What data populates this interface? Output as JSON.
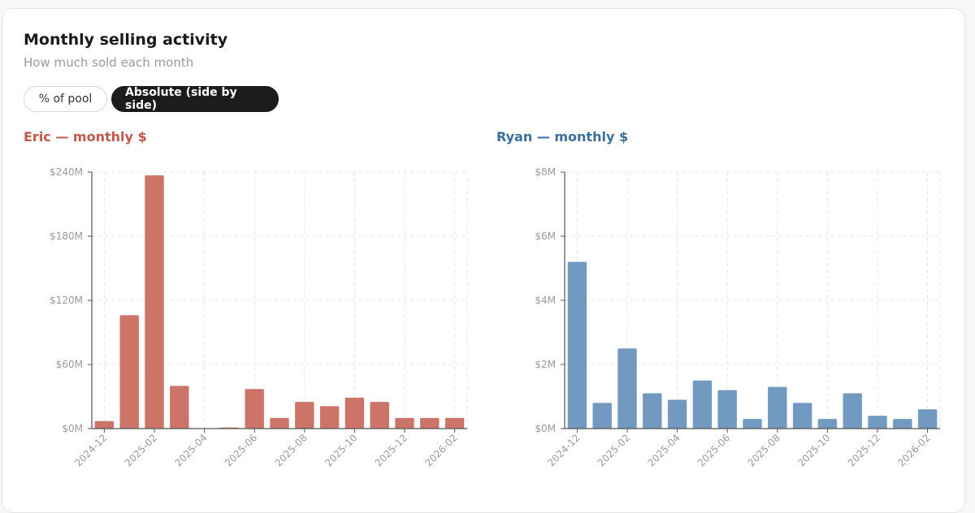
{
  "header": {
    "title": "Monthly selling activity",
    "subtitle": "How much sold each month"
  },
  "toggles": {
    "pct_label": "% of pool",
    "abs_label": "Absolute (side by side)",
    "active": "abs"
  },
  "colors": {
    "eric": "#c0594a",
    "eric_bar": "#cd7468",
    "ryan": "#3d6f9e",
    "ryan_bar": "#7299c0"
  },
  "chart_data": [
    {
      "type": "bar",
      "title": "Eric — monthly $",
      "categories": [
        "2024-12",
        "2025-01",
        "2025-02",
        "2025-03",
        "2025-04",
        "2025-05",
        "2025-06",
        "2025-07",
        "2025-08",
        "2025-09",
        "2025-10",
        "2025-11",
        "2025-12",
        "2026-01",
        "2026-02"
      ],
      "tick_labels": [
        "2024-12",
        "2025-02",
        "2025-04",
        "2025-06",
        "2025-08",
        "2025-10",
        "2025-12",
        "2026-02"
      ],
      "values": [
        7,
        106,
        237,
        40,
        0,
        1,
        37,
        10,
        25,
        21,
        29,
        25,
        10,
        10,
        10
      ],
      "unit": "$M",
      "ylim": [
        0,
        240
      ],
      "yticks": [
        0,
        60,
        120,
        180,
        240
      ],
      "ytick_labels": [
        "$0M",
        "$60M",
        "$120M",
        "$180M",
        "$240M"
      ],
      "grid": true
    },
    {
      "type": "bar",
      "title": "Ryan — monthly $",
      "categories": [
        "2024-12",
        "2025-01",
        "2025-02",
        "2025-03",
        "2025-04",
        "2025-05",
        "2025-06",
        "2025-07",
        "2025-08",
        "2025-09",
        "2025-10",
        "2025-11",
        "2025-12",
        "2026-01",
        "2026-02"
      ],
      "tick_labels": [
        "2024-12",
        "2025-02",
        "2025-04",
        "2025-06",
        "2025-08",
        "2025-10",
        "2025-12",
        "2026-02"
      ],
      "values": [
        5.2,
        0.8,
        2.5,
        1.1,
        0.9,
        1.5,
        1.2,
        0.3,
        1.3,
        0.8,
        0.3,
        1.1,
        0.4,
        0.3,
        0.6
      ],
      "unit": "$M",
      "ylim": [
        0,
        8
      ],
      "yticks": [
        0,
        2,
        4,
        6,
        8
      ],
      "ytick_labels": [
        "$0M",
        "$2M",
        "$4M",
        "$6M",
        "$8M"
      ],
      "grid": true
    }
  ]
}
